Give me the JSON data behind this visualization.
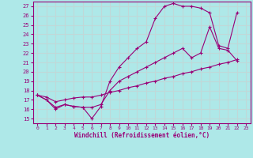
{
  "xlabel": "Windchill (Refroidissement éolien,°C)",
  "background_color": "#aee8e8",
  "grid_color": "#c0d8d8",
  "line_color": "#990077",
  "xlim": [
    -0.5,
    23.5
  ],
  "ylim": [
    14.5,
    27.5
  ],
  "xticks": [
    0,
    1,
    2,
    3,
    4,
    5,
    6,
    7,
    8,
    9,
    10,
    11,
    12,
    13,
    14,
    15,
    16,
    17,
    18,
    19,
    20,
    21,
    22,
    23
  ],
  "yticks": [
    15,
    16,
    17,
    18,
    19,
    20,
    21,
    22,
    23,
    24,
    25,
    26,
    27
  ],
  "series": [
    {
      "x": [
        0,
        1,
        2,
        3,
        4,
        5,
        6,
        7,
        8,
        9,
        10,
        11,
        12,
        13,
        14,
        15,
        16,
        17,
        18,
        19,
        20,
        21,
        22
      ],
      "y": [
        17.5,
        17.0,
        16.0,
        16.5,
        16.3,
        16.2,
        15.0,
        16.3,
        19.0,
        20.5,
        21.5,
        22.5,
        23.2,
        25.7,
        27.0,
        27.3,
        27.0,
        27.0,
        26.8,
        26.3,
        22.8,
        22.5,
        26.3
      ]
    },
    {
      "x": [
        0,
        1,
        2,
        3,
        4,
        5,
        6,
        7,
        8,
        9,
        10,
        11,
        12,
        13,
        14,
        15,
        16,
        17,
        18,
        19,
        20,
        21,
        22
      ],
      "y": [
        17.5,
        17.0,
        16.2,
        16.5,
        16.3,
        16.2,
        16.2,
        16.5,
        18.0,
        19.0,
        19.5,
        20.0,
        20.5,
        21.0,
        21.5,
        22.0,
        22.5,
        21.5,
        22.0,
        24.8,
        22.5,
        22.3,
        21.2
      ]
    },
    {
      "x": [
        0,
        1,
        2,
        3,
        4,
        5,
        6,
        7,
        8,
        9,
        10,
        11,
        12,
        13,
        14,
        15,
        16,
        17,
        18,
        19,
        20,
        21,
        22
      ],
      "y": [
        17.5,
        17.3,
        16.8,
        17.0,
        17.2,
        17.3,
        17.3,
        17.5,
        17.8,
        18.0,
        18.3,
        18.5,
        18.8,
        19.0,
        19.3,
        19.5,
        19.8,
        20.0,
        20.3,
        20.5,
        20.8,
        21.0,
        21.3
      ]
    }
  ]
}
